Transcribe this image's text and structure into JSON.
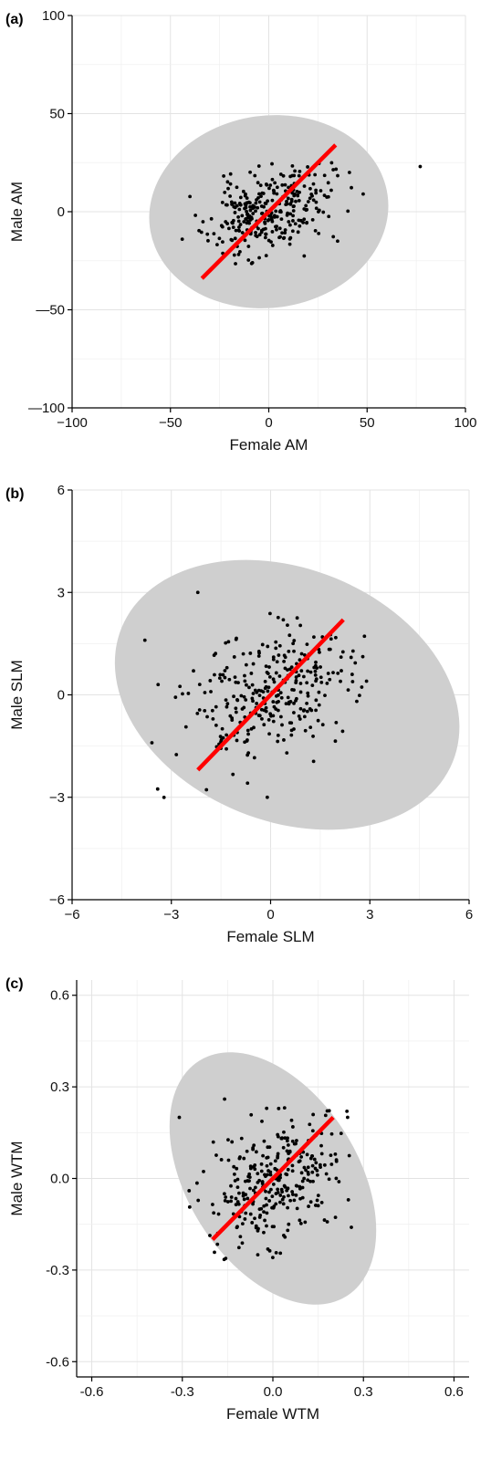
{
  "chart_data": [
    {
      "type": "scatter",
      "panel_label": "(a)",
      "xlabel": "Female AM",
      "ylabel": "Male AM",
      "xlim": [
        -100,
        100
      ],
      "ylim": [
        -100,
        100
      ],
      "x_ticks": [
        -100,
        -50,
        0,
        50,
        100
      ],
      "y_ticks": [
        -100,
        -50,
        0,
        50,
        100
      ],
      "x_tick_labels": [
        "−100",
        "−50",
        "0",
        "50",
        "100"
      ],
      "y_tick_labels": [
        "—100",
        "—50",
        "0",
        "50",
        "100"
      ],
      "grid": true,
      "legend": "none",
      "ellipse": {
        "cx": 0,
        "cy": 0,
        "rx": 61,
        "ry": 49,
        "rotation_deg": -8,
        "color": "#cfcfcf"
      },
      "fit_line": {
        "x": [
          -34,
          34
        ],
        "y": [
          -34,
          34
        ],
        "color": "#ff0000"
      },
      "points": {
        "n": 300,
        "cx": 0,
        "cy": 0,
        "sx": 15,
        "sy": 11.5,
        "clip": [
          -44,
          48,
          -27,
          25
        ],
        "seed": 11,
        "color": "#000000"
      },
      "extra_points": [
        [
          77,
          23
        ],
        [
          41,
          20
        ],
        [
          48,
          9
        ],
        [
          -44,
          -14
        ],
        [
          35,
          -15
        ]
      ]
    },
    {
      "type": "scatter",
      "panel_label": "(b)",
      "xlabel": "Female SLM",
      "ylabel": "Male SLM",
      "xlim": [
        -6,
        6
      ],
      "ylim": [
        -6,
        6
      ],
      "x_ticks": [
        -6,
        -3,
        0,
        3,
        6
      ],
      "y_ticks": [
        -6,
        -3,
        0,
        3,
        6
      ],
      "x_tick_labels": [
        "−6",
        "−3",
        "0",
        "3",
        "6"
      ],
      "y_tick_labels": [
        "−6",
        "−3",
        "0",
        "3",
        "6"
      ],
      "grid": true,
      "legend": "none",
      "ellipse": {
        "cx": 0.5,
        "cy": 0,
        "rx": 5.4,
        "ry": 3.7,
        "rotation_deg": 22,
        "color": "#cfcfcf"
      },
      "fit_line": {
        "x": [
          -2.2,
          2.2
        ],
        "y": [
          -2.2,
          2.2
        ],
        "color": "#ff0000"
      },
      "points": {
        "n": 300,
        "cx": 0,
        "cy": 0,
        "sx": 1.25,
        "sy": 1.0,
        "clip": [
          -3.9,
          2.9,
          -3.2,
          3.0
        ],
        "seed": 23,
        "color": "#000000"
      },
      "extra_points": [
        [
          -3.8,
          1.6
        ],
        [
          -3.4,
          0.3
        ],
        [
          -2.2,
          3.0
        ],
        [
          2.9,
          0.4
        ],
        [
          -0.1,
          -3.0
        ]
      ]
    },
    {
      "type": "scatter",
      "panel_label": "(c)",
      "xlabel": "Female WTM",
      "ylabel": "Male WTM",
      "xlim": [
        -0.65,
        0.65
      ],
      "ylim": [
        -0.65,
        0.65
      ],
      "x_ticks": [
        -0.6,
        -0.3,
        0.0,
        0.3,
        0.6
      ],
      "y_ticks": [
        -0.6,
        -0.3,
        0.0,
        0.3,
        0.6
      ],
      "x_tick_labels": [
        "-0.6",
        "-0.3",
        "0.0",
        "0.3",
        "0.6"
      ],
      "y_tick_labels": [
        "-0.6",
        "-0.3",
        "0.0",
        "0.3",
        "0.6"
      ],
      "grid": true,
      "legend": "none",
      "ellipse": {
        "cx": 0.0,
        "cy": 0.0,
        "rx": 0.46,
        "ry": 0.28,
        "rotation_deg": 58,
        "color": "#cfcfcf"
      },
      "fit_line": {
        "x": [
          -0.2,
          0.2
        ],
        "y": [
          -0.2,
          0.2
        ],
        "color": "#ff0000"
      },
      "points": {
        "n": 300,
        "cx": 0.02,
        "cy": 0.0,
        "sx": 0.11,
        "sy": 0.11,
        "clip": [
          -0.31,
          0.26,
          -0.27,
          0.27
        ],
        "seed": 37,
        "color": "#000000"
      },
      "extra_points": [
        [
          -0.31,
          0.2
        ],
        [
          -0.16,
          0.26
        ],
        [
          0.26,
          -0.16
        ],
        [
          -0.05,
          -0.25
        ],
        [
          0.25,
          -0.07
        ]
      ]
    }
  ]
}
